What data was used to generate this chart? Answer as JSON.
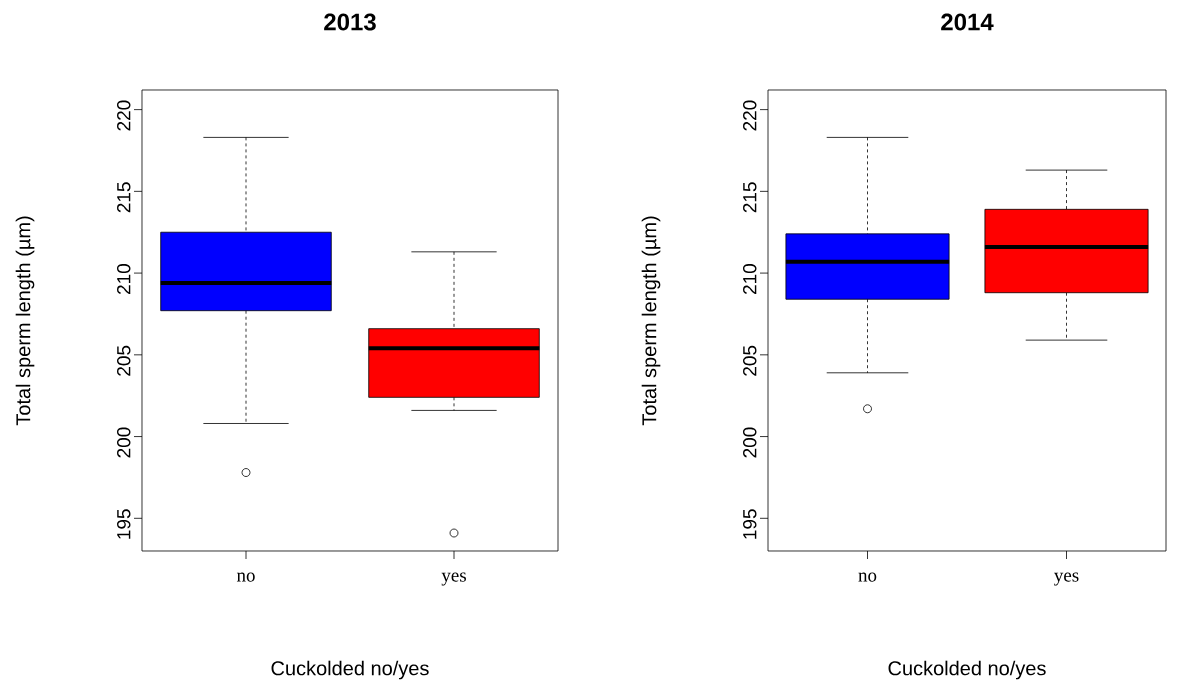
{
  "chart_data": [
    {
      "type": "box",
      "title": "2013",
      "xlabel": "Cuckolded no/yes",
      "ylabel": "Total sperm length (µm)",
      "categories": [
        "no",
        "yes"
      ],
      "colors": [
        "#0000ff",
        "#ff0000"
      ],
      "ylim": [
        193,
        221.2
      ],
      "yticks": [
        195,
        200,
        205,
        210,
        215,
        220
      ],
      "boxes": [
        {
          "low": 200.8,
          "q1": 207.7,
          "median": 209.4,
          "q3": 212.5,
          "high": 218.3,
          "outliers": [
            197.8
          ]
        },
        {
          "low": 201.6,
          "q1": 202.4,
          "median": 205.4,
          "q3": 206.6,
          "high": 211.3,
          "outliers": [
            194.1
          ]
        }
      ]
    },
    {
      "type": "box",
      "title": "2014",
      "xlabel": "Cuckolded no/yes",
      "ylabel": "Total sperm length (µm)",
      "categories": [
        "no",
        "yes"
      ],
      "colors": [
        "#0000ff",
        "#ff0000"
      ],
      "ylim": [
        193,
        221.2
      ],
      "yticks": [
        195,
        200,
        205,
        210,
        215,
        220
      ],
      "boxes": [
        {
          "low": 203.9,
          "q1": 208.4,
          "median": 210.7,
          "q3": 212.4,
          "high": 218.3,
          "outliers": [
            201.7
          ]
        },
        {
          "low": 205.9,
          "q1": 208.8,
          "median": 211.6,
          "q3": 213.9,
          "high": 216.3
        }
      ]
    }
  ]
}
